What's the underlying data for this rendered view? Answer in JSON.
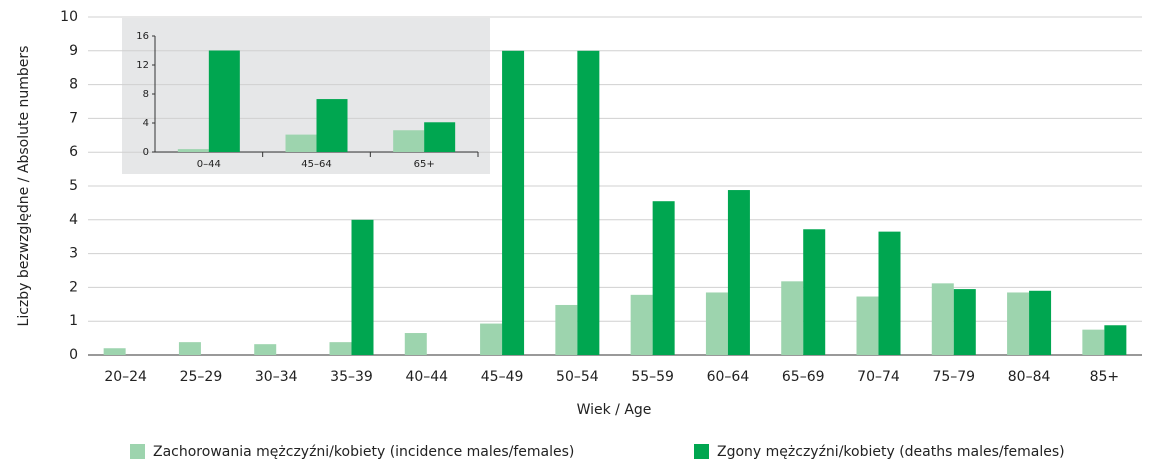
{
  "chart_data": [
    {
      "type": "bar",
      "x_label": "Wiek / Age",
      "y_label": "Liczby bezwzględne / Absolute numbers",
      "categories": [
        "20–24",
        "25–29",
        "30–34",
        "35–39",
        "40–44",
        "45–49",
        "50–54",
        "55–59",
        "60–64",
        "65–69",
        "70–74",
        "75–79",
        "80–84",
        "85+"
      ],
      "series": [
        {
          "name": "Zachorowania mężczyźni/kobiety (incidence males/females)",
          "color": "#9dd4ae",
          "values": [
            0.2,
            0.38,
            0.32,
            0.38,
            0.65,
            0.93,
            1.48,
            1.78,
            1.85,
            2.18,
            1.73,
            2.12,
            1.85,
            0.75
          ]
        },
        {
          "name": "Zgony mężczyźni/kobiety (deaths males/females)",
          "color": "#00a650",
          "values": [
            0,
            0,
            0,
            4,
            0,
            9,
            9,
            4.55,
            4.88,
            3.72,
            3.65,
            1.95,
            1.9,
            0.88
          ]
        }
      ],
      "ylim": [
        0,
        10
      ],
      "yticks": [
        0,
        1,
        2,
        3,
        4,
        5,
        6,
        7,
        8,
        9,
        10
      ],
      "grid": true
    },
    {
      "type": "bar",
      "categories": [
        "0–44",
        "45–64",
        "65+"
      ],
      "series": [
        {
          "color": "#9dd4ae",
          "values": [
            0.4,
            2.4,
            3.0
          ]
        },
        {
          "color": "#00a650",
          "values": [
            14,
            7.3,
            4.1
          ]
        }
      ],
      "ylim": [
        0,
        16
      ],
      "yticks": [
        0,
        4,
        8,
        12,
        16
      ],
      "grid": false
    }
  ]
}
